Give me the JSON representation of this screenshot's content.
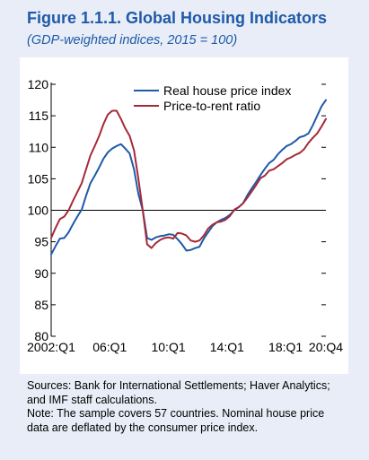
{
  "figure": {
    "title": "Figure 1.1.1.  Global Housing Indicators",
    "subtitle": "(GDP-weighted indices, 2015 = 100)"
  },
  "notes": {
    "sources_line1": "Sources: Bank for International Settlements; Haver Analytics;",
    "sources_line2": "and IMF staff calculations.",
    "note_line1": "Note: The sample covers 57 countries. Nominal house price",
    "note_line2": "data are deflated by the consumer price index."
  },
  "colors": {
    "panel_background": "#e8edf7",
    "title": "#1f5aa8",
    "real_house_price_index": "#1f5aa8",
    "price_to_rent_ratio": "#a52a3a",
    "reference_line": "#000000"
  },
  "chart_data": {
    "type": "line",
    "title": "Figure 1.1.1.  Global Housing Indicators",
    "subtitle": "(GDP-weighted indices, 2015 = 100)",
    "x_start": "2002:Q1",
    "x_end": "2020:Q4",
    "x_ticks": [
      "2002:Q1",
      "06:Q1",
      "10:Q1",
      "14:Q1",
      "18:Q1",
      "20:Q4"
    ],
    "ylim": [
      80,
      120
    ],
    "y_ticks": [
      "80",
      "85",
      "90",
      "95",
      "100",
      "105",
      "110",
      "115",
      "120"
    ],
    "reference_line": 100,
    "legend_position": "top-center",
    "grid": false,
    "series": [
      {
        "name": "Real house price index",
        "color": "#1f5aa8",
        "values": [
          93.0,
          94.3,
          95.5,
          95.6,
          96.5,
          97.8,
          99.0,
          100.1,
          102.3,
          104.3,
          105.5,
          106.8,
          108.2,
          109.2,
          109.8,
          110.2,
          110.5,
          109.8,
          109.0,
          106.5,
          102.6,
          100.0,
          95.6,
          95.3,
          95.7,
          95.9,
          96.0,
          96.2,
          96.1,
          95.4,
          94.6,
          93.6,
          93.7,
          94.0,
          94.2,
          95.5,
          96.5,
          97.5,
          98.1,
          98.5,
          98.8,
          99.3,
          100.0,
          100.5,
          101.1,
          102.4,
          103.5,
          104.5,
          105.6,
          106.6,
          107.5,
          108.0,
          108.9,
          109.6,
          110.2,
          110.5,
          111.0,
          111.6,
          111.8,
          112.2,
          113.5,
          115.0,
          116.5,
          117.5
        ]
      },
      {
        "name": "Price-to-rent ratio",
        "color": "#a52a3a",
        "values": [
          95.6,
          97.2,
          98.6,
          99.0,
          100.0,
          101.5,
          102.9,
          104.3,
          106.5,
          108.7,
          110.2,
          111.8,
          113.7,
          115.2,
          115.8,
          115.8,
          114.5,
          113.0,
          111.8,
          109.5,
          105.0,
          100.0,
          94.6,
          94.0,
          94.8,
          95.3,
          95.6,
          95.7,
          95.5,
          96.4,
          96.3,
          96.0,
          95.2,
          95.0,
          95.2,
          96.0,
          97.1,
          97.7,
          98.1,
          98.2,
          98.5,
          99.1,
          100.1,
          100.5,
          101.1,
          102.0,
          103.0,
          104.0,
          105.1,
          105.5,
          106.3,
          106.5,
          107.0,
          107.5,
          108.1,
          108.4,
          108.8,
          109.1,
          109.7,
          110.7,
          111.5,
          112.2,
          113.3,
          114.5
        ]
      }
    ]
  }
}
